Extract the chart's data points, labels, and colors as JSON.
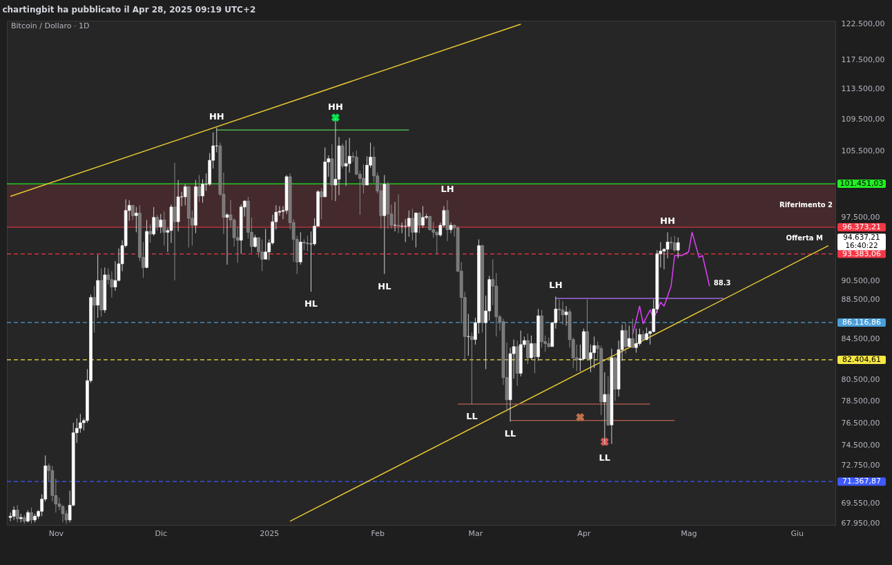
{
  "chart_data": {
    "type": "candlestick",
    "title": "chartingbit ha pubblicato il Apr 28, 2025 09:19 UTC+2",
    "subtitle": "Bitcoin / Dollaro · 1D",
    "x": [
      "2024-10-19",
      "2024-10-20",
      "2024-10-21",
      "2024-10-22",
      "2024-10-23",
      "2024-10-24",
      "2024-10-25",
      "2024-10-26",
      "2024-10-27",
      "2024-10-28",
      "2024-10-29",
      "2024-10-30",
      "2024-10-31",
      "2024-11-01",
      "2024-11-02",
      "2024-11-03",
      "2024-11-04",
      "2024-11-05",
      "2024-11-06",
      "2024-11-07",
      "2024-11-08",
      "2024-11-09",
      "2024-11-10",
      "2024-11-11",
      "2024-11-12",
      "2024-11-13",
      "2024-11-14",
      "2024-11-15",
      "2024-11-16",
      "2024-11-17",
      "2024-11-18",
      "2024-11-19",
      "2024-11-20",
      "2024-11-21",
      "2024-11-22",
      "2024-11-23",
      "2024-11-24",
      "2024-11-25",
      "2024-11-26",
      "2024-11-27",
      "2024-11-28",
      "2024-11-29",
      "2024-11-30",
      "2024-12-01",
      "2024-12-02",
      "2024-12-03",
      "2024-12-04",
      "2024-12-05",
      "2024-12-06",
      "2024-12-07",
      "2024-12-08",
      "2024-12-09",
      "2024-12-10",
      "2024-12-11",
      "2024-12-12",
      "2024-12-13",
      "2024-12-14",
      "2024-12-15",
      "2024-12-16",
      "2024-12-17",
      "2024-12-18",
      "2024-12-19",
      "2024-12-20",
      "2024-12-21",
      "2024-12-22",
      "2024-12-23",
      "2024-12-24",
      "2024-12-25",
      "2024-12-26",
      "2024-12-27",
      "2024-12-28",
      "2024-12-29",
      "2024-12-30",
      "2024-12-31",
      "2025-01-01",
      "2025-01-02",
      "2025-01-03",
      "2025-01-04",
      "2025-01-05",
      "2025-01-06",
      "2025-01-07",
      "2025-01-08",
      "2025-01-09",
      "2025-01-10",
      "2025-01-11",
      "2025-01-12",
      "2025-01-13",
      "2025-01-14",
      "2025-01-15",
      "2025-01-16",
      "2025-01-17",
      "2025-01-18",
      "2025-01-19",
      "2025-01-20",
      "2025-01-21",
      "2025-01-22",
      "2025-01-23",
      "2025-01-24",
      "2025-01-25",
      "2025-01-26",
      "2025-01-27",
      "2025-01-28",
      "2025-01-29",
      "2025-01-30",
      "2025-01-31",
      "2025-02-01",
      "2025-02-02",
      "2025-02-03",
      "2025-02-04",
      "2025-02-05",
      "2025-02-06",
      "2025-02-07",
      "2025-02-08",
      "2025-02-09",
      "2025-02-10",
      "2025-02-11",
      "2025-02-12",
      "2025-02-13",
      "2025-02-14",
      "2025-02-15",
      "2025-02-16",
      "2025-02-17",
      "2025-02-18",
      "2025-02-19",
      "2025-02-20",
      "2025-02-21",
      "2025-02-22",
      "2025-02-23",
      "2025-02-24",
      "2025-02-25",
      "2025-02-26",
      "2025-02-27",
      "2025-02-28",
      "2025-03-01",
      "2025-03-02",
      "2025-03-03",
      "2025-03-04",
      "2025-03-05",
      "2025-03-06",
      "2025-03-07",
      "2025-03-08",
      "2025-03-09",
      "2025-03-10",
      "2025-03-11",
      "2025-03-12",
      "2025-03-13",
      "2025-03-14",
      "2025-03-15",
      "2025-03-16",
      "2025-03-17",
      "2025-03-18",
      "2025-03-19",
      "2025-03-20",
      "2025-03-21",
      "2025-03-22",
      "2025-03-23",
      "2025-03-24",
      "2025-03-25",
      "2025-03-26",
      "2025-03-27",
      "2025-03-28",
      "2025-03-29",
      "2025-03-30",
      "2025-03-31",
      "2025-04-01",
      "2025-04-02",
      "2025-04-03",
      "2025-04-04",
      "2025-04-05",
      "2025-04-06",
      "2025-04-07",
      "2025-04-08",
      "2025-04-09",
      "2025-04-10",
      "2025-04-11",
      "2025-04-12",
      "2025-04-13",
      "2025-04-14",
      "2025-04-15",
      "2025-04-16",
      "2025-04-17",
      "2025-04-18",
      "2025-04-19",
      "2025-04-20",
      "2025-04-21",
      "2025-04-22",
      "2025-04-23",
      "2025-04-24",
      "2025-04-25",
      "2025-04-26",
      "2025-04-27",
      "2025-04-28"
    ],
    "ohlc": [
      [
        68400,
        68800,
        68100,
        68500
      ],
      [
        68500,
        69300,
        68200,
        69000
      ],
      [
        69000,
        69400,
        68000,
        68300
      ],
      [
        68300,
        68700,
        68000,
        68400
      ],
      [
        68400,
        68600,
        67900,
        68100
      ],
      [
        68100,
        69000,
        68000,
        68800
      ],
      [
        68800,
        69200,
        67900,
        68200
      ],
      [
        68200,
        68700,
        68000,
        68500
      ],
      [
        68500,
        69000,
        68300,
        68900
      ],
      [
        68900,
        70300,
        68500,
        69900
      ],
      [
        69900,
        73600,
        69700,
        72700
      ],
      [
        72700,
        72900,
        71400,
        72300
      ],
      [
        72300,
        72700,
        69700,
        70200
      ],
      [
        70200,
        71600,
        68800,
        69500
      ],
      [
        69500,
        70000,
        69000,
        69300
      ],
      [
        69300,
        69400,
        68000,
        68700
      ],
      [
        68700,
        69000,
        67900,
        68200
      ],
      [
        68200,
        70600,
        68000,
        69400
      ],
      [
        69400,
        76500,
        69300,
        75600
      ],
      [
        75600,
        76900,
        74700,
        76000
      ],
      [
        76000,
        77300,
        75600,
        76500
      ],
      [
        76500,
        76900,
        75800,
        76700
      ],
      [
        76700,
        81500,
        76500,
        80400
      ],
      [
        80400,
        89000,
        80200,
        88700
      ],
      [
        88700,
        89900,
        85100,
        87900
      ],
      [
        87900,
        93300,
        86600,
        90500
      ],
      [
        90500,
        91800,
        86700,
        87400
      ],
      [
        87400,
        91900,
        87100,
        91100
      ],
      [
        91100,
        91800,
        90100,
        90600
      ],
      [
        90600,
        91500,
        88700,
        89800
      ],
      [
        89800,
        92600,
        89400,
        90500
      ],
      [
        90500,
        94000,
        90400,
        92300
      ],
      [
        92300,
        94900,
        91500,
        94300
      ],
      [
        94300,
        99600,
        94100,
        98300
      ],
      [
        98300,
        99500,
        97100,
        98900
      ],
      [
        98900,
        98900,
        97200,
        97700
      ],
      [
        97700,
        98700,
        95800,
        98000
      ],
      [
        98000,
        98900,
        92600,
        93000
      ],
      [
        93000,
        94700,
        90800,
        91900
      ],
      [
        91900,
        97200,
        91800,
        95900
      ],
      [
        95900,
        96700,
        94600,
        95600
      ],
      [
        95600,
        98700,
        95400,
        97500
      ],
      [
        97500,
        97800,
        96000,
        96400
      ],
      [
        96400,
        97900,
        95700,
        97200
      ],
      [
        97200,
        98200,
        94300,
        95800
      ],
      [
        95800,
        96300,
        93600,
        96000
      ],
      [
        96000,
        99000,
        94600,
        98700
      ],
      [
        98700,
        104000,
        90500,
        97000
      ],
      [
        97000,
        101900,
        95900,
        99900
      ],
      [
        99900,
        100500,
        98800,
        99900
      ],
      [
        99900,
        101400,
        98900,
        101100
      ],
      [
        101100,
        101200,
        94100,
        97400
      ],
      [
        97400,
        98300,
        94300,
        96600
      ],
      [
        96600,
        101900,
        95700,
        101100
      ],
      [
        101100,
        102500,
        99300,
        100000
      ],
      [
        100000,
        102000,
        99200,
        101400
      ],
      [
        101400,
        102700,
        100600,
        101400
      ],
      [
        101400,
        105200,
        101200,
        104300
      ],
      [
        104300,
        107800,
        103300,
        106100
      ],
      [
        106100,
        108400,
        105300,
        106100
      ],
      [
        106100,
        106500,
        100000,
        100200
      ],
      [
        100200,
        102800,
        95600,
        97500
      ],
      [
        97500,
        98000,
        92200,
        97800
      ],
      [
        97800,
        99500,
        96400,
        97200
      ],
      [
        97200,
        97400,
        94200,
        95200
      ],
      [
        95200,
        96400,
        92400,
        94900
      ],
      [
        94900,
        99000,
        93400,
        98700
      ],
      [
        98700,
        99500,
        97600,
        99400
      ],
      [
        99400,
        99900,
        95100,
        95800
      ],
      [
        95800,
        97500,
        93500,
        94200
      ],
      [
        94200,
        95500,
        94100,
        95200
      ],
      [
        95200,
        95200,
        93000,
        93600
      ],
      [
        93600,
        95000,
        91500,
        92800
      ],
      [
        92800,
        96200,
        92800,
        93600
      ],
      [
        93600,
        95000,
        92700,
        94600
      ],
      [
        94600,
        97800,
        94400,
        97000
      ],
      [
        97000,
        98900,
        96100,
        98100
      ],
      [
        98100,
        98800,
        97700,
        98200
      ],
      [
        98200,
        98800,
        97300,
        98300
      ],
      [
        98300,
        102500,
        97900,
        102300
      ],
      [
        102300,
        102700,
        96100,
        96900
      ],
      [
        96900,
        97300,
        92500,
        95000
      ],
      [
        95000,
        95400,
        91200,
        92500
      ],
      [
        92500,
        95800,
        92200,
        94700
      ],
      [
        94700,
        95000,
        93800,
        94600
      ],
      [
        94600,
        95400,
        93700,
        94500
      ],
      [
        94500,
        95900,
        89300,
        94500
      ],
      [
        94500,
        97400,
        94300,
        96500
      ],
      [
        96500,
        100700,
        96500,
        100500
      ],
      [
        100500,
        100900,
        97300,
        99900
      ],
      [
        99900,
        105900,
        99900,
        104100
      ],
      [
        104100,
        104900,
        102300,
        104500
      ],
      [
        104500,
        106300,
        99500,
        101300
      ],
      [
        101300,
        109600,
        99400,
        102000
      ],
      [
        102000,
        107200,
        100100,
        106100
      ],
      [
        106100,
        106400,
        103300,
        103600
      ],
      [
        103600,
        106800,
        101200,
        103900
      ],
      [
        103900,
        107100,
        102800,
        104800
      ],
      [
        104800,
        105300,
        104100,
        104700
      ],
      [
        104700,
        105500,
        102500,
        102600
      ],
      [
        102600,
        103000,
        97800,
        102100
      ],
      [
        102100,
        103800,
        100300,
        101300
      ],
      [
        101300,
        104800,
        101300,
        103700
      ],
      [
        103700,
        106500,
        103400,
        104700
      ],
      [
        104700,
        106000,
        101600,
        102400
      ],
      [
        102400,
        102800,
        100300,
        100600
      ],
      [
        100600,
        101500,
        96200,
        97700
      ],
      [
        97700,
        102500,
        91200,
        101400
      ],
      [
        101400,
        101700,
        96200,
        97900
      ],
      [
        97900,
        99000,
        96200,
        96600
      ],
      [
        96600,
        99300,
        95900,
        96600
      ],
      [
        96600,
        100200,
        95700,
        96500
      ],
      [
        96500,
        96900,
        95700,
        96500
      ],
      [
        96500,
        97300,
        94700,
        96500
      ],
      [
        96500,
        98300,
        95300,
        97400
      ],
      [
        97400,
        98500,
        94900,
        95800
      ],
      [
        95800,
        98100,
        94100,
        98000
      ],
      [
        98000,
        98100,
        95700,
        96600
      ],
      [
        96600,
        98800,
        96300,
        97500
      ],
      [
        97500,
        97900,
        97300,
        97600
      ],
      [
        97600,
        97700,
        96000,
        96100
      ],
      [
        96100,
        97000,
        95200,
        95800
      ],
      [
        95800,
        96000,
        93400,
        95500
      ],
      [
        95500,
        96900,
        95300,
        96600
      ],
      [
        96600,
        98800,
        96400,
        98300
      ],
      [
        98300,
        99500,
        94800,
        96100
      ],
      [
        96100,
        96900,
        95700,
        96600
      ],
      [
        96600,
        96700,
        95300,
        96300
      ],
      [
        96300,
        96500,
        91400,
        91500
      ],
      [
        91500,
        92500,
        86000,
        88700
      ],
      [
        88700,
        89300,
        82300,
        84700
      ],
      [
        84700,
        87000,
        82800,
        84700
      ],
      [
        84700,
        85100,
        78200,
        84400
      ],
      [
        84400,
        86600,
        83900,
        86100
      ],
      [
        86100,
        95000,
        85000,
        94300
      ],
      [
        94300,
        94400,
        85100,
        86100
      ],
      [
        86100,
        88900,
        81500,
        87300
      ],
      [
        87300,
        91000,
        86300,
        90600
      ],
      [
        90600,
        92800,
        87900,
        89900
      ],
      [
        89900,
        91300,
        84700,
        86700
      ],
      [
        86700,
        86900,
        85300,
        86200
      ],
      [
        86200,
        86500,
        80000,
        80700
      ],
      [
        80700,
        84100,
        77500,
        78600
      ],
      [
        78600,
        83600,
        76600,
        83000
      ],
      [
        83000,
        84400,
        80600,
        83700
      ],
      [
        83700,
        84300,
        79900,
        81100
      ],
      [
        81100,
        85300,
        80800,
        83900
      ],
      [
        83900,
        84700,
        83600,
        84300
      ],
      [
        84300,
        85000,
        82000,
        82600
      ],
      [
        82600,
        84800,
        82400,
        84000
      ],
      [
        84000,
        84000,
        81100,
        82700
      ],
      [
        82700,
        87500,
        82300,
        86800
      ],
      [
        86800,
        87400,
        83600,
        84200
      ],
      [
        84200,
        84800,
        83200,
        84000
      ],
      [
        84000,
        84600,
        83600,
        83700
      ],
      [
        83700,
        86100,
        83700,
        86100
      ],
      [
        86100,
        88800,
        85500,
        87500
      ],
      [
        87500,
        88500,
        86300,
        87400
      ],
      [
        87400,
        88300,
        85900,
        86900
      ],
      [
        86900,
        87800,
        85800,
        87200
      ],
      [
        87200,
        87500,
        83600,
        84400
      ],
      [
        84400,
        84600,
        81600,
        82600
      ],
      [
        82600,
        83900,
        81300,
        82400
      ],
      [
        82400,
        83900,
        81300,
        82500
      ],
      [
        82500,
        85500,
        82400,
        85200
      ],
      [
        85200,
        88500,
        82300,
        82500
      ],
      [
        82500,
        83900,
        81200,
        83100
      ],
      [
        83100,
        84700,
        81600,
        83800
      ],
      [
        83800,
        84200,
        82400,
        83500
      ],
      [
        83500,
        83800,
        77200,
        78400
      ],
      [
        78400,
        81200,
        74500,
        79100
      ],
      [
        79100,
        80800,
        76200,
        76300
      ],
      [
        76300,
        83500,
        74600,
        82600
      ],
      [
        82600,
        82700,
        78500,
        79600
      ],
      [
        79600,
        84300,
        78900,
        83400
      ],
      [
        83400,
        85900,
        82300,
        85300
      ],
      [
        85300,
        86100,
        83000,
        83700
      ],
      [
        83700,
        85800,
        83700,
        84500
      ],
      [
        84500,
        86500,
        83600,
        83600
      ],
      [
        83600,
        85500,
        83100,
        84000
      ],
      [
        84000,
        85500,
        83800,
        84900
      ],
      [
        84900,
        85300,
        84300,
        84400
      ],
      [
        84400,
        85600,
        84300,
        85000
      ],
      [
        85000,
        85300,
        83900,
        85200
      ],
      [
        85200,
        88500,
        85100,
        87500
      ],
      [
        87500,
        93800,
        87100,
        93400
      ],
      [
        93400,
        94700,
        91900,
        93700
      ],
      [
        93700,
        94000,
        91700,
        93900
      ],
      [
        93900,
        95800,
        92900,
        94700
      ],
      [
        94700,
        95300,
        93900,
        94600
      ],
      [
        94600,
        95400,
        93600,
        93800
      ],
      [
        93800,
        95200,
        92900,
        94637.21
      ]
    ],
    "series": [
      {
        "type": "line",
        "color": "#e8c832",
        "x": [
          "2024-10-19",
          "2025-03-14"
        ],
        "values": [
          99950,
          122500
        ]
      },
      {
        "type": "line",
        "name": "Offerta M",
        "color": "#e8c832",
        "x": [
          "2025-01-07",
          "2025-06-10"
        ],
        "values": [
          68100,
          94300
        ]
      },
      {
        "type": "line",
        "color": "#4caf50",
        "x": [
          "2024-12-17",
          "2025-02-10"
        ],
        "values": [
          108100,
          108100
        ]
      },
      {
        "type": "line",
        "color": "#a1584a",
        "x": [
          "2025-02-24",
          "2025-04-20"
        ],
        "values": [
          78200,
          78200
        ]
      },
      {
        "type": "line",
        "color": "#a1584a",
        "x": [
          "2025-03-11",
          "2025-04-27"
        ],
        "values": [
          76700,
          76700
        ]
      },
      {
        "type": "line",
        "color": "#9c6ade",
        "x": [
          "2025-03-24",
          "2025-05-11"
        ],
        "values": [
          88600,
          88600
        ]
      },
      {
        "type": "line",
        "name": "88.3",
        "color": "#e040fb",
        "x": [
          "2025-04-15",
          "2025-04-17",
          "2025-04-18",
          "2025-04-20",
          "2025-04-21",
          "2025-04-23",
          "2025-04-24",
          "2025-04-26",
          "2025-04-27",
          "2025-04-29",
          "2025-05-01",
          "2025-05-02",
          "2025-05-04",
          "2025-05-05",
          "2025-05-07"
        ],
        "values": [
          84900,
          87800,
          86000,
          87400,
          86500,
          88200,
          87800,
          89900,
          93200,
          93200,
          93600,
          95800,
          93000,
          93200,
          89900
        ]
      },
      {
        "type": "scatter",
        "marker": "cross",
        "color": "#00e64d",
        "x": [
          "2025-01-20"
        ],
        "values": [
          109700
        ]
      },
      {
        "type": "scatter",
        "marker": "cross",
        "color": "#c0704a",
        "x": [
          "2025-03-31"
        ],
        "values": [
          77000
        ]
      },
      {
        "type": "scatter",
        "marker": "cross",
        "color": "#e05555",
        "x": [
          "2025-04-07"
        ],
        "values": [
          74800
        ]
      }
    ],
    "xlim": [
      "2024-10-18",
      "2025-06-12"
    ],
    "xticks": [
      {
        "value": "2024-11-01",
        "label": "Nov"
      },
      {
        "value": "2024-12-01",
        "label": "Dic"
      },
      {
        "value": "2025-01-01",
        "label": "2025"
      },
      {
        "value": "2025-02-01",
        "label": "Feb"
      },
      {
        "value": "2025-03-01",
        "label": "Mar"
      },
      {
        "value": "2025-04-01",
        "label": "Apr"
      },
      {
        "value": "2025-05-01",
        "label": "Mag"
      },
      {
        "value": "2025-06-01",
        "label": "Giu"
      }
    ],
    "ylim": [
      67800,
      123000
    ],
    "log": true,
    "yticks": [
      {
        "value": 122500,
        "label": "122.500,00"
      },
      {
        "value": 117500,
        "label": "117.500,00"
      },
      {
        "value": 113500,
        "label": "113.500,00"
      },
      {
        "value": 109500,
        "label": "109.500,00"
      },
      {
        "value": 105500,
        "label": "105.500,00"
      },
      {
        "value": 97500,
        "label": "97.500,00"
      },
      {
        "value": 90500,
        "label": "90.500,00"
      },
      {
        "value": 88500,
        "label": "88.500,00"
      },
      {
        "value": 84500,
        "label": "84.500,00"
      },
      {
        "value": 80500,
        "label": "80.500,00"
      },
      {
        "value": 78500,
        "label": "78.500,00"
      },
      {
        "value": 76500,
        "label": "76.500,00"
      },
      {
        "value": 74500,
        "label": "74.500,00"
      },
      {
        "value": 72750,
        "label": "72.750,00"
      },
      {
        "value": 69550,
        "label": "69.550,00"
      },
      {
        "value": 67950,
        "label": "67.950,00"
      }
    ],
    "grid": false,
    "bands": [
      {
        "axis": "y",
        "from": 96373.21,
        "to": 101451.03,
        "label": "Riferimento 2",
        "color": "#4a2c2e"
      }
    ],
    "ref_lines": [
      {
        "axis": "y",
        "value": 101451.03,
        "label": "101.451,03",
        "color": "#22ee22",
        "line_style": "solid"
      },
      {
        "axis": "y",
        "value": 96373.21,
        "label": "96.373,21",
        "color": "#f23645",
        "line_style": "solid"
      },
      {
        "axis": "y",
        "value": 93383.06,
        "label": "93.383,06",
        "color": "#f23645",
        "line_style": "dashed"
      },
      {
        "axis": "y",
        "value": 86116.86,
        "label": "86.116,86",
        "color": "#4a9fd8",
        "line_style": "dashed"
      },
      {
        "axis": "y",
        "value": 82404.61,
        "label": "82.404,61",
        "color": "#f5e642",
        "line_style": "dashed"
      },
      {
        "axis": "y",
        "value": 71367.87,
        "label": "71.367,87",
        "color": "#3d5afe",
        "line_style": "dashed"
      }
    ],
    "annotations": [
      {
        "text": "HH",
        "x": "2024-12-17",
        "y": 108400
      },
      {
        "text": "HH",
        "x": "2025-01-20",
        "y": 109600
      },
      {
        "text": "LH",
        "x": "2025-02-21",
        "y": 99500
      },
      {
        "text": "HL",
        "x": "2025-01-13",
        "y": 89300
      },
      {
        "text": "HL",
        "x": "2025-02-03",
        "y": 91200
      },
      {
        "text": "LH",
        "x": "2025-03-24",
        "y": 88800
      },
      {
        "text": "LL",
        "x": "2025-02-28",
        "y": 78200
      },
      {
        "text": "LL",
        "x": "2025-03-11",
        "y": 76600
      },
      {
        "text": "LL",
        "x": "2025-04-07",
        "y": 74500
      },
      {
        "text": "HH",
        "x": "2025-04-25",
        "y": 95800
      },
      "94.637,21\n16:40:22"
    ]
  }
}
